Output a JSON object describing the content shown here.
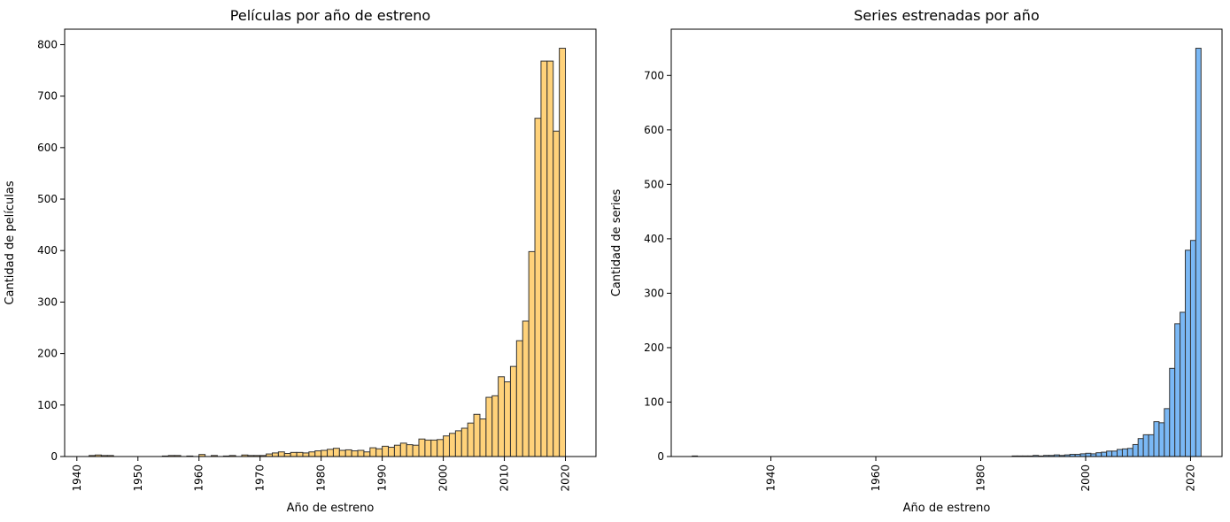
{
  "chart_data": [
    {
      "type": "bar",
      "title": "Películas por año de estreno",
      "xlabel": "Año de estreno",
      "ylabel": "Cantidad de películas",
      "xlim": [
        1938,
        2025
      ],
      "ylim": [
        0,
        830
      ],
      "xticks": [
        1940,
        1950,
        1960,
        1970,
        1980,
        1990,
        2000,
        2010,
        2020
      ],
      "yticks": [
        0,
        100,
        200,
        300,
        400,
        500,
        600,
        700,
        800
      ],
      "bin_width": 1,
      "grid": false,
      "colors": {
        "fill": "#ffd27a",
        "edge": "#333333"
      },
      "x": [
        1942,
        1943,
        1944,
        1945,
        1954,
        1955,
        1956,
        1958,
        1960,
        1962,
        1964,
        1965,
        1967,
        1968,
        1969,
        1970,
        1971,
        1972,
        1973,
        1974,
        1975,
        1976,
        1977,
        1978,
        1979,
        1980,
        1981,
        1982,
        1983,
        1984,
        1985,
        1986,
        1987,
        1988,
        1989,
        1990,
        1991,
        1992,
        1993,
        1994,
        1995,
        1996,
        1997,
        1998,
        1999,
        2000,
        2001,
        2002,
        2003,
        2004,
        2005,
        2006,
        2007,
        2008,
        2009,
        2010,
        2011,
        2012,
        2013,
        2014,
        2015,
        2016,
        2017,
        2018,
        2019,
        2020,
        2021
      ],
      "values": [
        2,
        3,
        2,
        2,
        1,
        2,
        2,
        1,
        4,
        2,
        1,
        2,
        3,
        2,
        2,
        2,
        5,
        7,
        9,
        6,
        8,
        8,
        7,
        9,
        11,
        12,
        14,
        16,
        12,
        13,
        11,
        12,
        9,
        17,
        15,
        20,
        18,
        22,
        26,
        23,
        22,
        34,
        32,
        32,
        33,
        40,
        45,
        50,
        55,
        65,
        82,
        73,
        115,
        118,
        155,
        145,
        175,
        225,
        263,
        398,
        657,
        768,
        768,
        632,
        793,
        0,
        0
      ]
    },
    {
      "type": "bar",
      "title": "Series estrenadas por año",
      "xlabel": "Año de estreno",
      "ylabel": "Cantidad de series",
      "xlim": [
        1921,
        2026
      ],
      "ylim": [
        0,
        785
      ],
      "xticks": [
        1940,
        1960,
        1980,
        2000,
        2020
      ],
      "yticks": [
        0,
        100,
        200,
        300,
        400,
        500,
        600,
        700
      ],
      "bin_width": 1,
      "grid": false,
      "colors": {
        "fill": "#7ab8f5",
        "edge": "#333333"
      },
      "x": [
        1925,
        1926,
        1927,
        1928,
        1929,
        1930,
        1931,
        1932,
        1933,
        1934,
        1935,
        1936,
        1937,
        1938,
        1939,
        1940,
        1941,
        1942,
        1943,
        1944,
        1945,
        1946,
        1947,
        1948,
        1949,
        1950,
        1951,
        1952,
        1953,
        1954,
        1955,
        1956,
        1957,
        1958,
        1959,
        1960,
        1961,
        1962,
        1963,
        1964,
        1965,
        1966,
        1967,
        1968,
        1969,
        1970,
        1971,
        1972,
        1973,
        1974,
        1975,
        1976,
        1977,
        1978,
        1979,
        1980,
        1981,
        1982,
        1983,
        1984,
        1985,
        1986,
        1987,
        1988,
        1989,
        1990,
        1991,
        1992,
        1993,
        1994,
        1995,
        1996,
        1997,
        1998,
        1999,
        2000,
        2001,
        2002,
        2003,
        2004,
        2005,
        2006,
        2007,
        2008,
        2009,
        2010,
        2011,
        2012,
        2013,
        2014,
        2015,
        2016,
        2017,
        2018,
        2019,
        2020,
        2021
      ],
      "values": [
        1,
        0,
        0,
        0,
        0,
        0,
        0,
        0,
        0,
        0,
        0,
        0,
        0,
        0,
        0,
        0,
        0,
        0,
        0,
        0,
        0,
        0,
        0,
        0,
        0,
        0,
        0,
        0,
        0,
        0,
        0,
        0,
        0,
        0,
        0,
        0,
        0,
        0,
        0,
        0,
        0,
        0,
        0,
        0,
        0,
        0,
        0,
        0,
        0,
        0,
        0,
        0,
        0,
        0,
        0,
        0,
        0,
        0,
        0,
        0,
        0,
        1,
        1,
        1,
        1,
        2,
        1,
        2,
        2,
        3,
        2,
        3,
        4,
        4,
        5,
        6,
        5,
        7,
        8,
        10,
        10,
        13,
        14,
        15,
        22,
        33,
        40,
        40,
        64,
        62,
        88,
        162,
        244,
        265,
        379,
        397,
        750
      ]
    }
  ]
}
